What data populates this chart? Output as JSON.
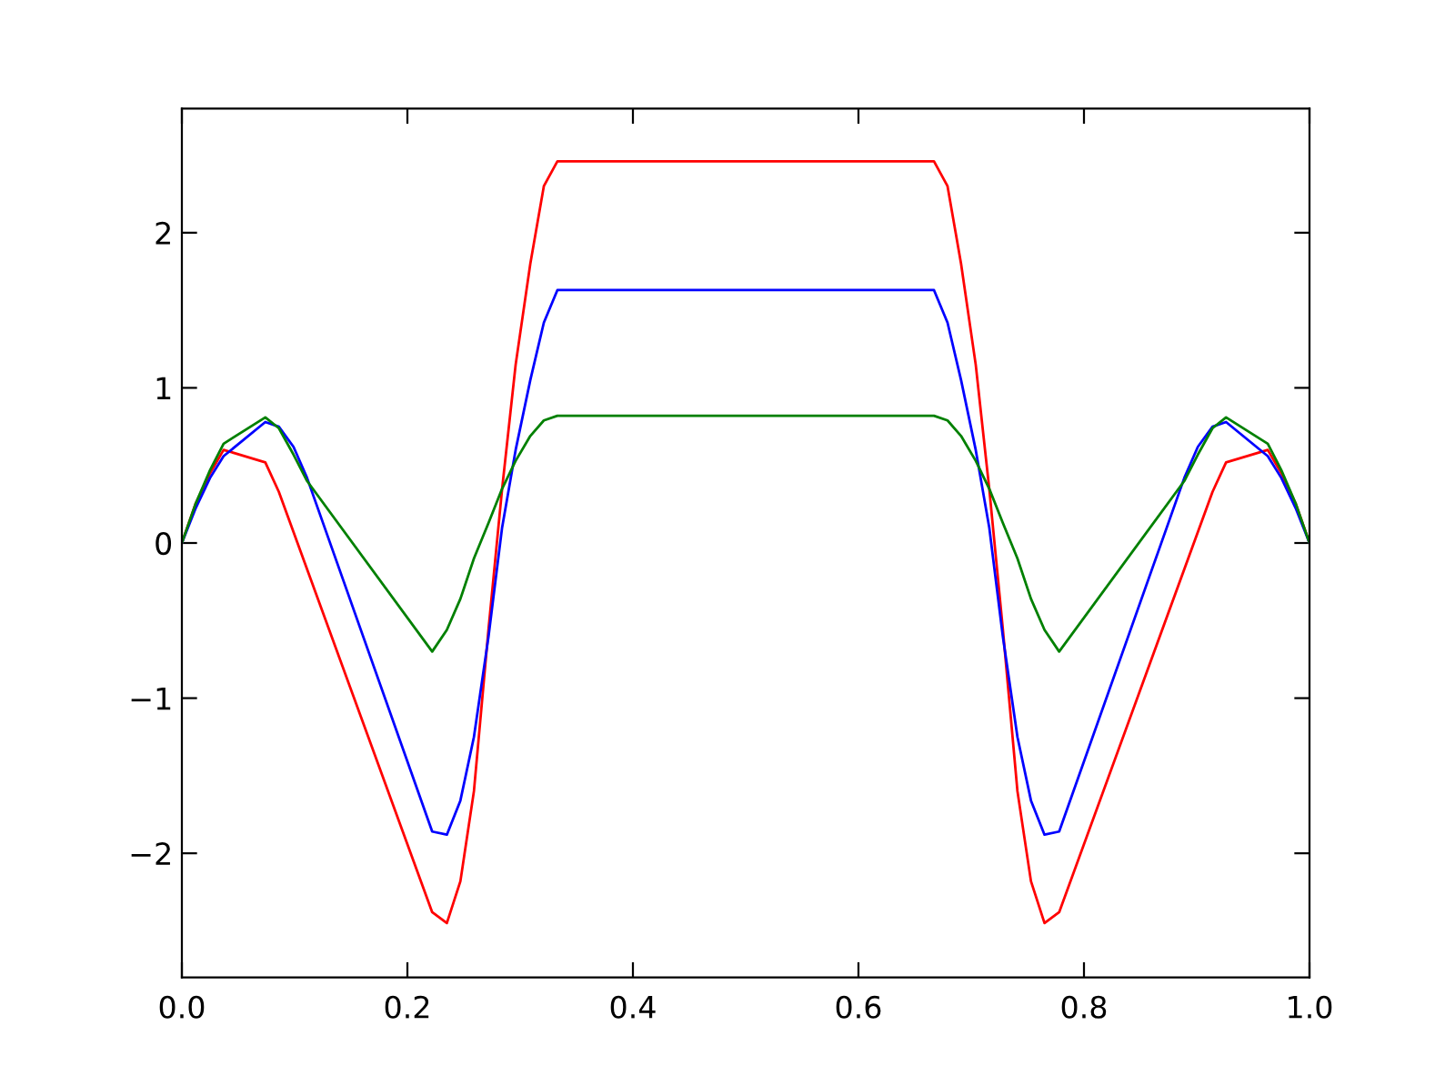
{
  "chart_data": {
    "type": "line",
    "xlim": [
      0.0,
      1.0
    ],
    "ylim": [
      -2.8,
      2.8
    ],
    "xticks": [
      {
        "value": 0.0,
        "label": "0.0"
      },
      {
        "value": 0.2,
        "label": "0.2"
      },
      {
        "value": 0.4,
        "label": "0.4"
      },
      {
        "value": 0.6,
        "label": "0.6"
      },
      {
        "value": 0.8,
        "label": "0.8"
      },
      {
        "value": 1.0,
        "label": "1.0"
      }
    ],
    "yticks": [
      {
        "value": -2,
        "label": "−2"
      },
      {
        "value": -1,
        "label": "−1"
      },
      0,
      1,
      2
    ],
    "grid": false,
    "marker": "none",
    "line_style": "solid",
    "series": [
      {
        "color": "#ff0000",
        "x": [
          0,
          0.012,
          0.025,
          0.037,
          0.074,
          0.086,
          0.222,
          0.235,
          0.247,
          0.259,
          0.272,
          0.284,
          0.296,
          0.309,
          0.321,
          0.333,
          0.667,
          0.679,
          0.691,
          0.704,
          0.716,
          0.728,
          0.741,
          0.753,
          0.765,
          0.778,
          0.914,
          0.926,
          0.963,
          0.975,
          0.988,
          1.0
        ],
        "values": [
          0,
          0.25,
          0.45,
          0.6,
          0.52,
          0.33,
          -2.38,
          -2.45,
          -2.18,
          -1.6,
          -0.55,
          0.35,
          1.15,
          1.8,
          2.3,
          2.46,
          2.46,
          2.3,
          1.8,
          1.15,
          0.35,
          -0.55,
          -1.6,
          -2.18,
          -2.45,
          -2.38,
          0.33,
          0.52,
          0.6,
          0.45,
          0.25,
          0
        ]
      },
      {
        "color": "#0000ff",
        "x": [
          0,
          0.012,
          0.025,
          0.037,
          0.074,
          0.086,
          0.099,
          0.111,
          0.222,
          0.235,
          0.247,
          0.259,
          0.272,
          0.284,
          0.296,
          0.309,
          0.321,
          0.333,
          0.667,
          0.679,
          0.691,
          0.704,
          0.716,
          0.728,
          0.741,
          0.753,
          0.765,
          0.778,
          0.889,
          0.901,
          0.914,
          0.926,
          0.963,
          0.975,
          0.988,
          1.0
        ],
        "values": [
          0,
          0.22,
          0.42,
          0.56,
          0.78,
          0.75,
          0.62,
          0.42,
          -1.86,
          -1.88,
          -1.66,
          -1.25,
          -0.6,
          0.1,
          0.6,
          1.05,
          1.42,
          1.63,
          1.63,
          1.42,
          1.05,
          0.6,
          0.1,
          -0.6,
          -1.25,
          -1.66,
          -1.88,
          -1.86,
          0.42,
          0.62,
          0.75,
          0.78,
          0.56,
          0.42,
          0.22,
          0
        ]
      },
      {
        "color": "#008000",
        "x": [
          0,
          0.012,
          0.025,
          0.037,
          0.074,
          0.086,
          0.099,
          0.111,
          0.222,
          0.235,
          0.247,
          0.259,
          0.272,
          0.284,
          0.296,
          0.309,
          0.321,
          0.333,
          0.667,
          0.679,
          0.691,
          0.704,
          0.716,
          0.728,
          0.741,
          0.753,
          0.765,
          0.778,
          0.889,
          0.901,
          0.914,
          0.926,
          0.963,
          0.975,
          0.988,
          1.0
        ],
        "values": [
          0,
          0.25,
          0.47,
          0.64,
          0.81,
          0.74,
          0.57,
          0.4,
          -0.7,
          -0.56,
          -0.36,
          -0.1,
          0.13,
          0.35,
          0.53,
          0.69,
          0.79,
          0.82,
          0.82,
          0.79,
          0.69,
          0.53,
          0.35,
          0.13,
          -0.1,
          -0.36,
          -0.56,
          -0.7,
          0.4,
          0.57,
          0.74,
          0.81,
          0.64,
          0.47,
          0.25,
          0
        ]
      }
    ]
  }
}
